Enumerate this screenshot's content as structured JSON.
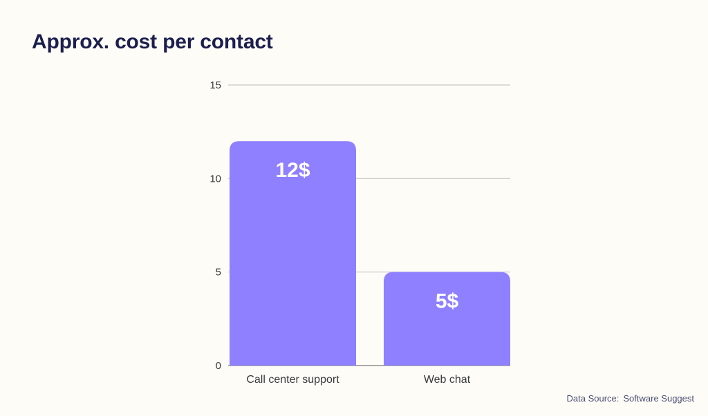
{
  "title": "Approx. cost per contact",
  "source": {
    "label": "Data Source:",
    "value": "Software Suggest"
  },
  "colors": {
    "bar": "#8f80ff",
    "grid": "#c8c8c8",
    "tick_text": "#3a3a3a",
    "value_label": "#ffffff"
  },
  "chart_data": {
    "type": "bar",
    "categories": [
      "Call center support",
      "Web chat"
    ],
    "values": [
      12,
      5
    ],
    "data_labels": [
      "12$",
      "5$"
    ],
    "title": "Approx. cost per contact",
    "xlabel": "",
    "ylabel": "",
    "ylim": [
      0,
      15
    ],
    "yticks": [
      0,
      5,
      10,
      15
    ],
    "grid": true,
    "legend": "none"
  }
}
